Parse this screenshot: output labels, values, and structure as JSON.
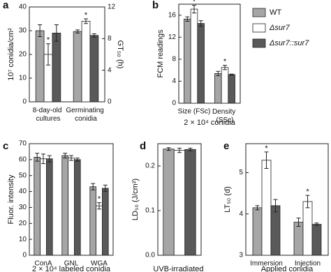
{
  "chart_data": [
    {
      "type": "bar",
      "panel": "a",
      "ylabel": "10⁷ conidia/cm²",
      "y2label": "GT₅₀ (h)",
      "categories": [
        "8-day-old cultures",
        "Germinating conidia"
      ],
      "category_axis": [
        "y",
        "y2"
      ],
      "ylim": [
        0,
        40
      ],
      "yticks": [
        0,
        10,
        20,
        30,
        40
      ],
      "y2lim": [
        0,
        12
      ],
      "y2ticks": [
        0,
        4,
        8,
        12
      ],
      "sig_mark": "*",
      "series": [
        {
          "name": "WT",
          "color": "#a6a6a6",
          "values": [
            30,
            8.9
          ],
          "errors": [
            2.5,
            0.2
          ],
          "significant": [
            false,
            false
          ]
        },
        {
          "name": "Δsur7",
          "color": "#ffffff",
          "values": [
            20,
            10.2
          ],
          "errors": [
            4.5,
            0.3
          ],
          "significant": [
            true,
            true
          ]
        },
        {
          "name": "Δsur7::sur7",
          "color": "#595959",
          "values": [
            29,
            8.4
          ],
          "errors": [
            3.5,
            0.2
          ],
          "significant": [
            false,
            false
          ]
        }
      ]
    },
    {
      "type": "bar",
      "panel": "b",
      "ylabel": "FCM readings",
      "xlabel": "2 × 10⁴ conidia",
      "categories": [
        "Size (FSc)",
        "Density (SSc)"
      ],
      "ylim": [
        0,
        18
      ],
      "yticks": [
        0,
        4,
        8,
        12,
        16
      ],
      "sig_mark": "*",
      "legend": "right",
      "series": [
        {
          "name": "WT",
          "color": "#a6a6a6",
          "values": [
            15.3,
            5.4
          ],
          "errors": [
            0.4,
            0.4
          ],
          "significant": [
            false,
            false
          ]
        },
        {
          "name": "Δsur7",
          "color": "#ffffff",
          "values": [
            17.1,
            6.5
          ],
          "errors": [
            0.7,
            0.4
          ],
          "significant": [
            true,
            true
          ]
        },
        {
          "name": "Δsur7::sur7",
          "color": "#595959",
          "values": [
            14.5,
            5.2
          ],
          "errors": [
            0.5,
            0.1
          ],
          "significant": [
            false,
            false
          ]
        }
      ]
    },
    {
      "type": "bar",
      "panel": "c",
      "ylabel": "Fluor. intensity",
      "xlabel": "2 × 10⁴ labeled conidia",
      "categories": [
        "ConA",
        "GNL",
        "WGA"
      ],
      "ylim": [
        0,
        70
      ],
      "yticks": [
        0,
        10,
        20,
        30,
        40,
        50,
        60,
        70
      ],
      "sig_mark": "*",
      "series": [
        {
          "name": "WT",
          "color": "#a6a6a6",
          "values": [
            61.5,
            62.5,
            43
          ],
          "errors": [
            2.5,
            1.5,
            2
          ],
          "significant": [
            false,
            false,
            false
          ]
        },
        {
          "name": "Δsur7",
          "color": "#ffffff",
          "values": [
            60.5,
            61,
            31
          ],
          "errors": [
            3,
            1.5,
            2
          ],
          "significant": [
            false,
            false,
            true
          ]
        },
        {
          "name": "Δsur7::sur7",
          "color": "#595959",
          "values": [
            60.5,
            60,
            42
          ],
          "errors": [
            2,
            1,
            2
          ],
          "significant": [
            false,
            false,
            false
          ]
        }
      ]
    },
    {
      "type": "bar",
      "panel": "d",
      "ylabel": "LD₅₀ (J/cm²)",
      "xlabel": "UVB-irradiated conidia",
      "categories": [
        null
      ],
      "ylim": [
        0,
        0.25
      ],
      "yticks": [
        {
          "value": 0,
          "label": "0.0"
        },
        0.1,
        0.2
      ],
      "sig_mark": "*",
      "series": [
        {
          "name": "WT",
          "color": "#a6a6a6",
          "values": [
            0.238
          ],
          "errors": [
            0.003
          ],
          "significant": [
            false
          ]
        },
        {
          "name": "Δsur7",
          "color": "#ffffff",
          "values": [
            0.235
          ],
          "errors": [
            0.005
          ],
          "significant": [
            false
          ]
        },
        {
          "name": "Δsur7::sur7",
          "color": "#595959",
          "values": [
            0.237
          ],
          "errors": [
            0.003
          ],
          "significant": [
            false
          ]
        }
      ]
    },
    {
      "type": "bar",
      "panel": "e",
      "ylabel": "LT₅₀ (d)",
      "xlabel": "Applied conidia",
      "categories": [
        "Immersion",
        "Injection"
      ],
      "ylim": [
        3,
        5.7
      ],
      "yticks": [
        3,
        4,
        5
      ],
      "sig_mark": "*",
      "series": [
        {
          "name": "WT",
          "color": "#a6a6a6",
          "values": [
            4.15,
            3.8
          ],
          "errors": [
            0.05,
            0.1
          ],
          "significant": [
            false,
            false
          ]
        },
        {
          "name": "Δsur7",
          "color": "#ffffff",
          "values": [
            5.3,
            4.3
          ],
          "errors": [
            0.2,
            0.15
          ],
          "significant": [
            true,
            true
          ]
        },
        {
          "name": "Δsur7::sur7",
          "color": "#595959",
          "values": [
            4.2,
            3.75
          ],
          "errors": [
            0.15,
            0.03
          ],
          "significant": [
            false,
            false
          ]
        }
      ]
    }
  ]
}
